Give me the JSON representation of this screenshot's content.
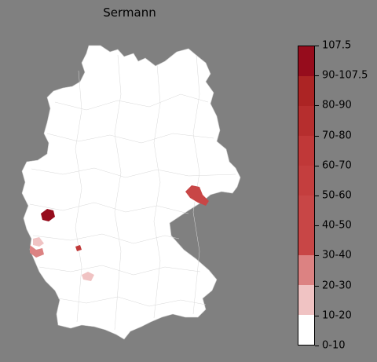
{
  "title": "Sermann",
  "legend": {
    "bins": [
      {
        "label": "0-10",
        "color": "#ffffff"
      },
      {
        "label": "10-20",
        "color": "#f0c3c3"
      },
      {
        "label": "20-30",
        "color": "#dc8282"
      },
      {
        "label": "30-40",
        "color": "#c84646"
      },
      {
        "label": "40-50",
        "color": "#c84646"
      },
      {
        "label": "50-60",
        "color": "#c43e3e"
      },
      {
        "label": "60-70",
        "color": "#c03838"
      },
      {
        "label": "70-80",
        "color": "#b62e2e"
      },
      {
        "label": "80-90",
        "color": "#ac2424"
      },
      {
        "label": "90-107.5",
        "color": "#a01820"
      }
    ],
    "max_label": "107.5",
    "top_color": "#960c1c"
  },
  "map": {
    "country_fill": "#ffffff",
    "highlighted_regions": [
      {
        "name": "region-west-dark",
        "color": "#960c1c"
      },
      {
        "name": "region-east-saxony",
        "color": "#c84646"
      },
      {
        "name": "region-saarland",
        "color": "#dc8282"
      },
      {
        "name": "region-southwest-light",
        "color": "#f0c3c3"
      },
      {
        "name": "region-small-red",
        "color": "#c03838"
      }
    ]
  }
}
